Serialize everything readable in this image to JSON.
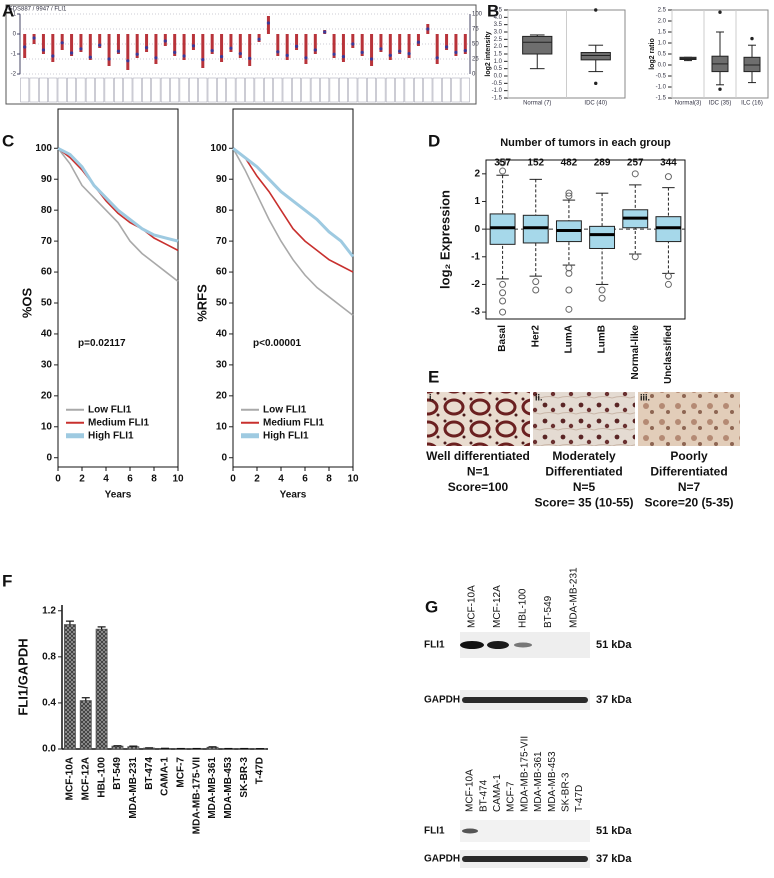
{
  "panel_labels": [
    "A",
    "B",
    "C",
    "D",
    "E",
    "F",
    "G"
  ],
  "chart_data": [
    {
      "type": "bar",
      "title": "GDS887 / 9947 / FLI1",
      "categories": [
        null,
        null,
        null,
        null,
        null,
        null,
        null,
        null,
        null,
        null,
        null,
        null,
        null,
        null,
        null,
        null,
        null,
        null,
        null,
        null,
        null,
        null,
        null,
        null,
        null,
        null,
        null,
        null,
        null,
        null,
        null,
        null,
        null,
        null,
        null,
        null,
        null,
        null,
        null,
        null,
        null,
        null,
        null,
        null,
        null,
        null,
        null,
        null
      ],
      "series": [
        {
          "color": "#b8333a",
          "values": [
            -1.2,
            -0.5,
            -1.0,
            -1.4,
            -0.8,
            -1.1,
            -0.9,
            -1.3,
            -0.7,
            -1.6,
            -1.0,
            -1.8,
            -1.2,
            -0.9,
            -1.5,
            -0.6,
            -1.1,
            -1.3,
            -0.8,
            -1.7,
            -1.0,
            -1.4,
            -0.9,
            -1.2,
            -1.6,
            -0.4,
            0.9,
            -1.1,
            -1.3,
            -0.8,
            -1.5,
            -1.0,
            0.2,
            -1.2,
            -1.4,
            -0.7,
            -1.1,
            -1.6,
            -0.9,
            -1.3,
            -1.0,
            -1.2,
            -0.6,
            0.5,
            -1.5,
            -0.8,
            -1.1,
            -1.0
          ]
        },
        {
          "color": "#3a3a9a",
          "axis": "y2",
          "marker": "dot",
          "values": [
            45,
            60,
            40,
            30,
            52,
            35,
            42,
            28,
            48,
            25,
            38,
            22,
            33,
            44,
            27,
            55,
            36,
            30,
            47,
            24,
            39,
            29,
            43,
            34,
            26,
            58,
            85,
            37,
            31,
            46,
            27,
            40,
            70,
            33,
            29,
            50,
            36,
            25,
            42,
            31,
            38,
            34,
            53,
            75,
            27,
            45,
            36,
            39
          ]
        }
      ],
      "ylim": [
        -2,
        1
      ],
      "yticks": [
        1,
        0,
        -1,
        -2
      ],
      "y2lim": [
        0,
        100
      ],
      "y2ticks": [
        100,
        75,
        50,
        25,
        0
      ]
    },
    {
      "type": "box",
      "y_label": "log2 intensity",
      "color": "#6e6e6e",
      "categories": [
        "Normal (7)",
        "IDC (40)"
      ],
      "boxes": [
        {
          "whislo": 0.5,
          "q1": 1.5,
          "med": 2.3,
          "q3": 2.7,
          "whishi": 2.8,
          "fliers": []
        },
        {
          "whislo": 0.3,
          "q1": 1.1,
          "med": 1.4,
          "q3": 1.6,
          "whishi": 2.1,
          "fliers": [
            4.5,
            -0.5
          ]
        }
      ],
      "ylim": [
        -1.5,
        4.5
      ],
      "yticks": [
        4.5,
        {
          "value": 4,
          "label": "4.0"
        },
        3.5,
        {
          "value": 3,
          "label": "3.0"
        },
        2.5,
        {
          "value": 2,
          "label": "2.0"
        },
        1.5,
        {
          "value": 1,
          "label": "1.0"
        },
        0.5,
        {
          "value": 0,
          "label": "0.0"
        },
        -0.5,
        {
          "value": -1,
          "label": "-1.0"
        },
        -1.5
      ]
    },
    {
      "type": "box",
      "y_label": "log2 ratio",
      "color": "#6e6e6e",
      "categories": [
        "Normal(3)",
        "IDC (35)",
        "ILC (16)"
      ],
      "boxes": [
        {
          "whislo": 0.2,
          "q1": 0.25,
          "med": 0.3,
          "q3": 0.35,
          "whishi": 0.35,
          "fliers": []
        },
        {
          "whislo": -0.9,
          "q1": -0.3,
          "med": 0.05,
          "q3": 0.4,
          "whishi": 1.5,
          "fliers": [
            2.4,
            -1.1
          ]
        },
        {
          "whislo": -0.8,
          "q1": -0.3,
          "med": 0.0,
          "q3": 0.35,
          "whishi": 0.9,
          "fliers": [
            1.2
          ]
        }
      ],
      "ylim": [
        -1.5,
        2.5
      ],
      "yticks": [
        2.5,
        {
          "value": 2,
          "label": "2.0"
        },
        1.5,
        {
          "value": 1,
          "label": "1.0"
        },
        0.5,
        {
          "value": 0,
          "label": "0.0"
        },
        -0.5,
        {
          "value": -1,
          "label": "-1.0"
        },
        -1.5
      ]
    },
    {
      "type": "line",
      "y_label": "%OS",
      "x_label": "Years",
      "annotation": "p=0.02117",
      "x": [
        0,
        1,
        2,
        3,
        4,
        5,
        6,
        7,
        8,
        9,
        10
      ],
      "series": [
        {
          "name": "Low FLI1",
          "color": "#a9a9a9",
          "values": [
            100,
            95,
            88,
            84,
            80,
            76,
            70,
            66,
            63,
            60,
            57
          ]
        },
        {
          "name": "Medium FLI1",
          "color": "#c8302e",
          "values": [
            100,
            97,
            93,
            88,
            83,
            79,
            76,
            74,
            71,
            69,
            67
          ]
        },
        {
          "name": "High FLI1",
          "color": "#9ecae1",
          "values": [
            100,
            98,
            94,
            88,
            84,
            80,
            77,
            74,
            72,
            71,
            70
          ]
        }
      ],
      "xlim": [
        0,
        10
      ],
      "xticks": [
        0,
        2,
        4,
        6,
        8,
        10
      ],
      "ylim": [
        -3,
        103
      ],
      "yticks": [
        0,
        10,
        20,
        30,
        40,
        50,
        60,
        70,
        80,
        90,
        100
      ]
    },
    {
      "type": "line",
      "y_label": "%RFS",
      "x_label": "Years",
      "annotation": "p<0.00001",
      "x": [
        0,
        1,
        2,
        3,
        4,
        5,
        6,
        7,
        8,
        9,
        10
      ],
      "series": [
        {
          "name": "Low FLI1",
          "color": "#a9a9a9",
          "values": [
            100,
            93,
            85,
            77,
            70,
            64,
            59,
            55,
            52,
            49,
            46
          ]
        },
        {
          "name": "Medium FLI1",
          "color": "#c8302e",
          "values": [
            100,
            97,
            91,
            86,
            80,
            74,
            70,
            67,
            64,
            62,
            60
          ]
        },
        {
          "name": "High FLI1",
          "color": "#9ecae1",
          "values": [
            100,
            97,
            94,
            90,
            86,
            83,
            80,
            77,
            73,
            70,
            65
          ]
        }
      ],
      "xlim": [
        0,
        10
      ],
      "xticks": [
        0,
        2,
        4,
        6,
        8,
        10
      ],
      "ylim": [
        -3,
        103
      ],
      "yticks": [
        0,
        10,
        20,
        30,
        40,
        50,
        60,
        70,
        80,
        90,
        100
      ]
    },
    {
      "type": "box",
      "title": "Number of tumors in each group",
      "y_label": "log₂ Expression",
      "color": "#a6d8ea",
      "counts": [
        357,
        152,
        482,
        289,
        257,
        344
      ],
      "categories": [
        "Basal",
        "Her2",
        "LumA",
        "LumB",
        "Normal-like",
        "Unclassified"
      ],
      "boxes": [
        {
          "whislo": -1.8,
          "q1": -0.55,
          "med": 0.05,
          "q3": 0.55,
          "whishi": 1.95,
          "fliers": [
            2.4,
            2.1,
            -2.0,
            -2.3,
            -2.6,
            -3.0
          ]
        },
        {
          "whislo": -1.7,
          "q1": -0.5,
          "med": 0.05,
          "q3": 0.5,
          "whishi": 1.8,
          "fliers": [
            -1.9,
            -2.2
          ]
        },
        {
          "whislo": -1.3,
          "q1": -0.45,
          "med": -0.05,
          "q3": 0.3,
          "whishi": 1.05,
          "fliers": [
            1.3,
            1.2,
            -1.4,
            -1.6,
            -2.2,
            -2.9
          ]
        },
        {
          "whislo": -2.0,
          "q1": -0.7,
          "med": -0.2,
          "q3": 0.1,
          "whishi": 1.3,
          "fliers": [
            -2.2,
            -2.5
          ]
        },
        {
          "whislo": -0.9,
          "q1": 0.05,
          "med": 0.4,
          "q3": 0.7,
          "whishi": 1.6,
          "fliers": [
            2.0,
            -1.0
          ]
        },
        {
          "whislo": -1.6,
          "q1": -0.45,
          "med": 0.05,
          "q3": 0.45,
          "whishi": 1.5,
          "fliers": [
            1.9,
            -1.7,
            -2.0
          ]
        }
      ],
      "ylim": [
        -3.25,
        2.5
      ],
      "yticks": [
        -3,
        -2,
        -1,
        0,
        1,
        2
      ]
    },
    {
      "type": "bar",
      "y_label": "FLI1/GAPDH",
      "color": "#555555",
      "categories": [
        "MCF-10A",
        "MCF-12A",
        "HBL-100",
        "BT-549",
        "MDA-MB-231",
        "BT-474",
        "CAMA-1",
        "MCF-7",
        "MDA-MB-175-VII",
        "MDA-MB-361",
        "MDA-MB-453",
        "SK-BR-3",
        "T-47D"
      ],
      "values": [
        1.08,
        0.42,
        1.04,
        0.025,
        0.02,
        0.008,
        0.005,
        0.003,
        0.003,
        0.015,
        0.003,
        0.003,
        0.002
      ],
      "errors": [
        0.03,
        0.025,
        0.02,
        0.003,
        0.005,
        0.002,
        0.001,
        0.001,
        0.001,
        0.004,
        0.001,
        0.001,
        0.001
      ],
      "ylim": [
        0,
        1.25
      ],
      "yticks": [
        {
          "value": 0,
          "label": "0.0"
        },
        0.4,
        0.8,
        1.2
      ]
    }
  ],
  "histology": [
    {
      "label": "i.",
      "caption": [
        "Well differentiated",
        "N=1",
        "Score=100"
      ]
    },
    {
      "label": "ii.",
      "caption": [
        "Moderately",
        "Differentiated",
        "N=5",
        "Score= 35 (10-55)"
      ]
    },
    {
      "label": "iii.",
      "caption": [
        "Poorly",
        "Differentiated",
        "N=7",
        "Score=20 (5-35)"
      ]
    }
  ],
  "blots": [
    {
      "lanes": [
        "MCF-10A",
        "MCF-12A",
        "HBL-100",
        "BT-549",
        "MDA-MB-231"
      ],
      "rows": [
        {
          "label": "FLI1",
          "size": "51 kDa"
        },
        {
          "label": "GAPDH",
          "size": "37 kDa"
        }
      ]
    },
    {
      "lanes": [
        "MCF-10A",
        "BT-474",
        "CAMA-1",
        "MCF-7",
        "MDA-MB-175-VII",
        "MDA-MB-361",
        "MDA-MB-453",
        "SK-BR-3",
        "T-47D"
      ],
      "rows": [
        {
          "label": "FLI1",
          "size": "51 kDa"
        },
        {
          "label": "GAPDH",
          "size": "37 kDa"
        }
      ]
    }
  ]
}
